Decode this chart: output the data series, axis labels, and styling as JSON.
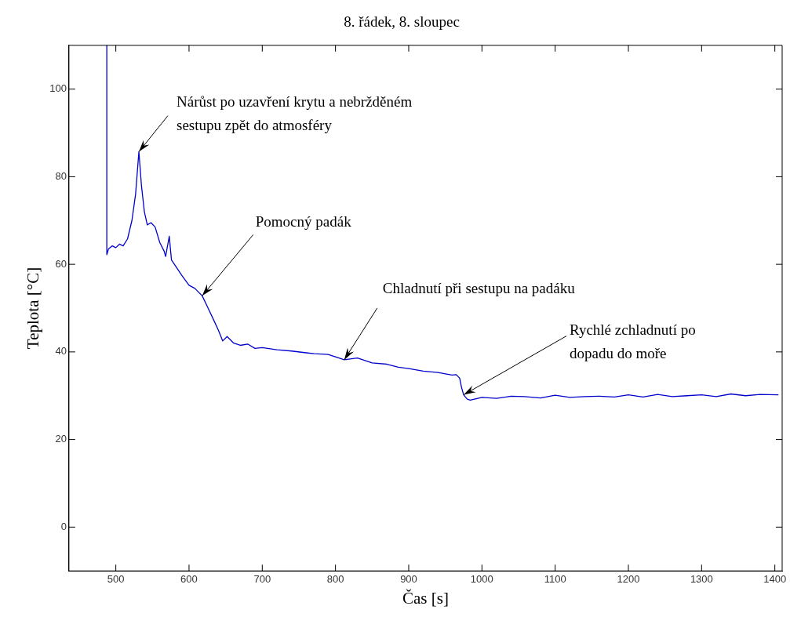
{
  "chart_data": {
    "type": "line",
    "title": "8. řádek, 8. sloupec",
    "xlabel": "Čas [s]",
    "ylabel": "Teplota [°C]",
    "series": [
      {
        "color": "#0000cc",
        "x": [
          487.7,
          487.7,
          490,
          495,
          500,
          505,
          510,
          516,
          522,
          527,
          531.5,
          535,
          539,
          543,
          548,
          553.7,
          560,
          566,
          568,
          573,
          576,
          582,
          590,
          600,
          608,
          618,
          626,
          635,
          640,
          646,
          652,
          661,
          670,
          680,
          690,
          700,
          720,
          740,
          760,
          771,
          790,
          812,
          830,
          850,
          870,
          886,
          900,
          920,
          940,
          959,
          965,
          969.6,
          972,
          975,
          980,
          984,
          1000,
          1020,
          1040,
          1058,
          1080,
          1100,
          1120,
          1140,
          1160,
          1181,
          1200,
          1220,
          1240,
          1260,
          1280,
          1300,
          1320,
          1340,
          1360,
          1380,
          1405
        ],
        "values": [
          110,
          62.2,
          63.5,
          64.2,
          63.8,
          64.6,
          64.2,
          65.8,
          70,
          76,
          85.7,
          78,
          72,
          69,
          69.5,
          68.5,
          65,
          63,
          61.8,
          66.4,
          61,
          59.5,
          57.5,
          55.2,
          54.5,
          52.8,
          50,
          46.8,
          45,
          42.5,
          43.5,
          42,
          41.5,
          41.8,
          40.8,
          41,
          40.5,
          40.2,
          39.8,
          39.6,
          39.4,
          38.2,
          38.6,
          37.5,
          37.2,
          36.5,
          36.2,
          35.6,
          35.3,
          34.7,
          34.8,
          34,
          32,
          30.2,
          29.2,
          29,
          29.6,
          29.4,
          29.9,
          29.8,
          29.5,
          30.1,
          29.6,
          29.8,
          29.9,
          29.7,
          30.2,
          29.7,
          30.3,
          29.8,
          30,
          30.2,
          29.8,
          30.4,
          30,
          30.3,
          30.2
        ]
      }
    ],
    "xlim": [
      436,
      1410
    ],
    "ylim": [
      -10,
      110
    ],
    "xticks": [
      500,
      600,
      700,
      800,
      900,
      1000,
      1100,
      1200,
      1300,
      1400
    ],
    "yticks": [
      0,
      20,
      40,
      60,
      80,
      100
    ],
    "grid": false,
    "marker": "none",
    "line_style": "solid",
    "annotations": [
      {
        "text": "Nárůst po uzavření krytu a nebržděném\nsestupu zpět do atmosféry",
        "x": 531.5,
        "y": 85.7
      },
      {
        "text": "Pomocný padák",
        "x": 618,
        "y": 52.8
      },
      {
        "text": "Chladnutí při sestupu na padáku",
        "x": 812,
        "y": 38.2
      },
      {
        "text": "Rychlé zchladnutí po\ndopadu do moře",
        "x": 975,
        "y": 30.2
      }
    ]
  }
}
